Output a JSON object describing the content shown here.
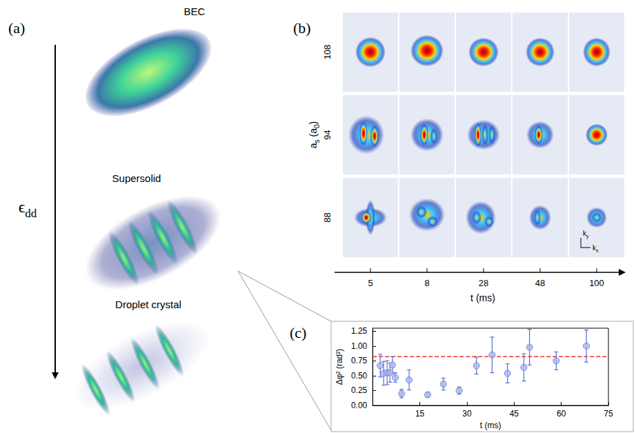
{
  "chart_data": {
    "type": "scatter",
    "x_label": "t (ms)",
    "y_label": "Δφ² (rad²)",
    "xlim": [
      0,
      75
    ],
    "xticks": [
      15,
      30,
      45,
      60,
      75
    ],
    "ylim": [
      0,
      1.3
    ],
    "yticks": [
      {
        "value": 0,
        "label": "0.00"
      },
      0.25,
      {
        "value": 0.5,
        "label": "0.50"
      },
      0.75,
      {
        "value": 1,
        "label": "1.00"
      },
      1.25
    ],
    "grid": false,
    "series": [
      {
        "type": "scatter",
        "color": "#a9b8ef",
        "marker": "circle",
        "x": [
          2.4,
          3.5,
          4.6,
          5.5,
          6.3,
          7.2,
          9.2,
          11.6,
          17.5,
          22.5,
          27.5,
          33.0,
          38.0,
          42.9,
          48.1,
          49.9,
          58.4,
          68.0
        ],
        "values": [
          0.67,
          0.54,
          0.55,
          0.55,
          0.68,
          0.47,
          0.2,
          0.43,
          0.18,
          0.36,
          0.25,
          0.67,
          0.85,
          0.54,
          0.64,
          0.98,
          0.75,
          1.0
        ],
        "errors": [
          0.19,
          0.2,
          0.2,
          0.16,
          0.14,
          0.08,
          0.07,
          0.17,
          0.04,
          0.1,
          0.06,
          0.14,
          0.3,
          0.16,
          0.23,
          0.3,
          0.15,
          0.27
        ]
      },
      {
        "type": "line",
        "color": "#e8312f",
        "line_style": "dashed",
        "x": [
          0,
          75
        ],
        "values": [
          0.82,
          0.82
        ]
      }
    ]
  },
  "panel_letters": [
    "(a)",
    "(b)",
    "(c)"
  ],
  "panel_a": {
    "labels": [
      "BEC",
      "Supersolid",
      "Droplet crystal"
    ],
    "arrow_label": [
      {
        "text": "ϵ"
      },
      {
        "text": "dd",
        "sub": true
      }
    ]
  },
  "panel_b": {
    "row_values": [
      108,
      94,
      88
    ],
    "row_axis_label": [
      {
        "text": "a"
      },
      {
        "text": "s",
        "sub": true
      },
      {
        "text": " (a"
      },
      {
        "text": "0",
        "sub": true
      },
      {
        "text": ")"
      }
    ],
    "column_times": [
      5,
      8,
      28,
      48,
      100
    ],
    "x_label": "t (ms)",
    "kx_label": [
      {
        "text": "k"
      },
      {
        "text": "x",
        "sub": true
      }
    ],
    "ky_label": [
      {
        "text": "k"
      },
      {
        "text": "y",
        "sub": true
      }
    ]
  }
}
